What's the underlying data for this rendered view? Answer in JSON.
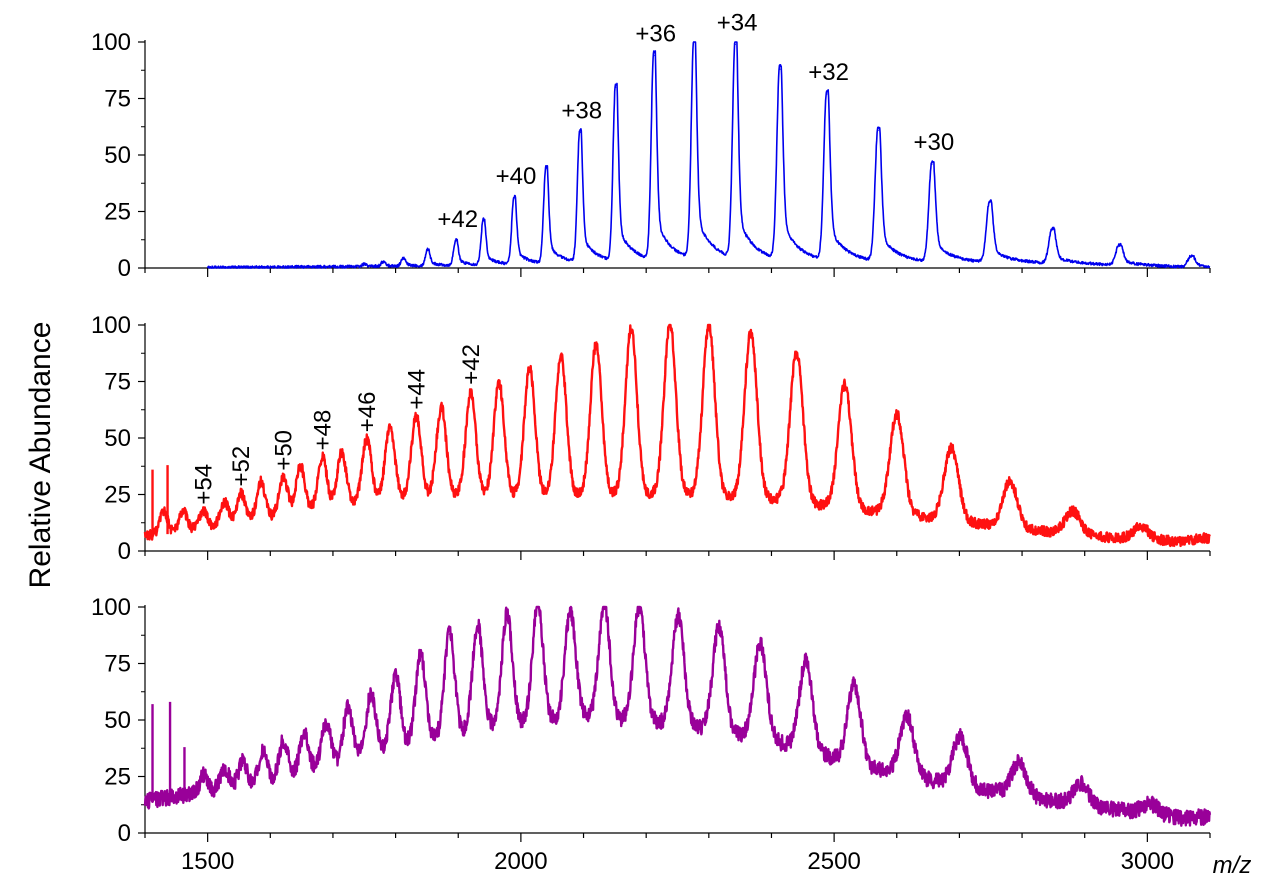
{
  "chart_data": {
    "type": "line",
    "ylabel": "Relative Abundance",
    "xlabel": "m/z",
    "xlim": [
      1400,
      3100
    ],
    "x_ticks": [
      "1500",
      "2000",
      "2500",
      "3000"
    ],
    "y_ticks": [
      "0",
      "25",
      "50",
      "75",
      "100"
    ],
    "grid": false,
    "legend": "none",
    "panels": [
      {
        "color": "#0000ee",
        "ylim": [
          0,
          100
        ],
        "start_x": 1500,
        "baseline": [
          [
            1500,
            0
          ],
          [
            2000,
            1
          ],
          [
            2300,
            3
          ],
          [
            2600,
            2
          ],
          [
            2800,
            2
          ],
          [
            3100,
            0
          ]
        ],
        "peaks": [
          {
            "x": 1750,
            "y": 1.5
          },
          {
            "x": 1780,
            "y": 2.5
          },
          {
            "x": 1812,
            "y": 4
          },
          {
            "x": 1851,
            "y": 8
          },
          {
            "x": 1896,
            "y": 12,
            "label": "+42"
          },
          {
            "x": 1940,
            "y": 21
          },
          {
            "x": 1989,
            "y": 31,
            "label": "+40"
          },
          {
            "x": 2040,
            "y": 44
          },
          {
            "x": 2094,
            "y": 60,
            "label": "+38"
          },
          {
            "x": 2151,
            "y": 80
          },
          {
            "x": 2212,
            "y": 94,
            "label": "+36"
          },
          {
            "x": 2276,
            "y": 100
          },
          {
            "x": 2342,
            "y": 99,
            "label": "+34"
          },
          {
            "x": 2413,
            "y": 88
          },
          {
            "x": 2488,
            "y": 77,
            "label": "+32"
          },
          {
            "x": 2570,
            "y": 61
          },
          {
            "x": 2656,
            "y": 46,
            "label": "+30"
          },
          {
            "x": 2748,
            "y": 29
          },
          {
            "x": 2848,
            "y": 17
          },
          {
            "x": 2955,
            "y": 10
          },
          {
            "x": 3070,
            "y": 5
          }
        ]
      },
      {
        "color": "#ff1111",
        "ylim": [
          0,
          100
        ],
        "start_x": 1400,
        "baseline": [
          [
            1400,
            6
          ],
          [
            1550,
            12
          ],
          [
            1700,
            19
          ],
          [
            1800,
            23
          ],
          [
            2000,
            24
          ],
          [
            2250,
            24
          ],
          [
            2400,
            22
          ],
          [
            2600,
            16
          ],
          [
            2800,
            9
          ],
          [
            2950,
            5
          ],
          [
            3100,
            3
          ]
        ],
        "peaks": [
          {
            "x": 1430,
            "y": 17
          },
          {
            "x": 1461,
            "y": 17
          },
          {
            "x": 1493,
            "y": 17,
            "label": "+54"
          },
          {
            "x": 1527,
            "y": 21
          },
          {
            "x": 1553,
            "y": 25,
            "label": "+52"
          },
          {
            "x": 1585,
            "y": 30
          },
          {
            "x": 1621,
            "y": 32,
            "label": "+50"
          },
          {
            "x": 1648,
            "y": 37
          },
          {
            "x": 1683,
            "y": 41,
            "label": "+48"
          },
          {
            "x": 1714,
            "y": 43
          },
          {
            "x": 1754,
            "y": 49,
            "label": "+46"
          },
          {
            "x": 1791,
            "y": 55
          },
          {
            "x": 1833,
            "y": 59,
            "label": "+44"
          },
          {
            "x": 1873,
            "y": 63
          },
          {
            "x": 1920,
            "y": 70,
            "label": "+42"
          },
          {
            "x": 1965,
            "y": 74
          },
          {
            "x": 2014,
            "y": 80
          },
          {
            "x": 2064,
            "y": 86
          },
          {
            "x": 2120,
            "y": 91
          },
          {
            "x": 2176,
            "y": 98
          },
          {
            "x": 2238,
            "y": 100
          },
          {
            "x": 2300,
            "y": 99
          },
          {
            "x": 2367,
            "y": 96
          },
          {
            "x": 2440,
            "y": 87
          },
          {
            "x": 2517,
            "y": 73
          },
          {
            "x": 2600,
            "y": 60
          },
          {
            "x": 2687,
            "y": 45
          },
          {
            "x": 2781,
            "y": 30
          },
          {
            "x": 2881,
            "y": 17
          },
          {
            "x": 2990,
            "y": 10
          },
          {
            "x": 3090,
            "y": 5
          }
        ],
        "spikes": [
          {
            "x": 1412,
            "y": 36
          },
          {
            "x": 1436,
            "y": 38
          }
        ]
      },
      {
        "color": "#990099",
        "ylim": [
          0,
          100
        ],
        "start_x": 1400,
        "baseline": [
          [
            1400,
            13
          ],
          [
            1600,
            22
          ],
          [
            1800,
            37
          ],
          [
            1950,
            46
          ],
          [
            2100,
            50
          ],
          [
            2250,
            47
          ],
          [
            2400,
            40
          ],
          [
            2550,
            28
          ],
          [
            2700,
            20
          ],
          [
            2900,
            11
          ],
          [
            3100,
            4
          ]
        ],
        "peaks": [
          {
            "x": 1494,
            "y": 25
          },
          {
            "x": 1527,
            "y": 28
          },
          {
            "x": 1556,
            "y": 31
          },
          {
            "x": 1588,
            "y": 35
          },
          {
            "x": 1621,
            "y": 40
          },
          {
            "x": 1654,
            "y": 43
          },
          {
            "x": 1689,
            "y": 48
          },
          {
            "x": 1724,
            "y": 55
          },
          {
            "x": 1761,
            "y": 61
          },
          {
            "x": 1800,
            "y": 69
          },
          {
            "x": 1840,
            "y": 78
          },
          {
            "x": 1886,
            "y": 88
          },
          {
            "x": 1931,
            "y": 91
          },
          {
            "x": 1978,
            "y": 96
          },
          {
            "x": 2027,
            "y": 100
          },
          {
            "x": 2079,
            "y": 97
          },
          {
            "x": 2133,
            "y": 100
          },
          {
            "x": 2189,
            "y": 99
          },
          {
            "x": 2251,
            "y": 95
          },
          {
            "x": 2316,
            "y": 90
          },
          {
            "x": 2382,
            "y": 83
          },
          {
            "x": 2455,
            "y": 75
          },
          {
            "x": 2532,
            "y": 65
          },
          {
            "x": 2616,
            "y": 51
          },
          {
            "x": 2701,
            "y": 42
          },
          {
            "x": 2795,
            "y": 30
          },
          {
            "x": 2894,
            "y": 21
          },
          {
            "x": 3004,
            "y": 12
          },
          {
            "x": 3090,
            "y": 6
          }
        ],
        "spikes": [
          {
            "x": 1412,
            "y": 57
          },
          {
            "x": 1440,
            "y": 58
          },
          {
            "x": 1463,
            "y": 38
          }
        ]
      }
    ]
  }
}
